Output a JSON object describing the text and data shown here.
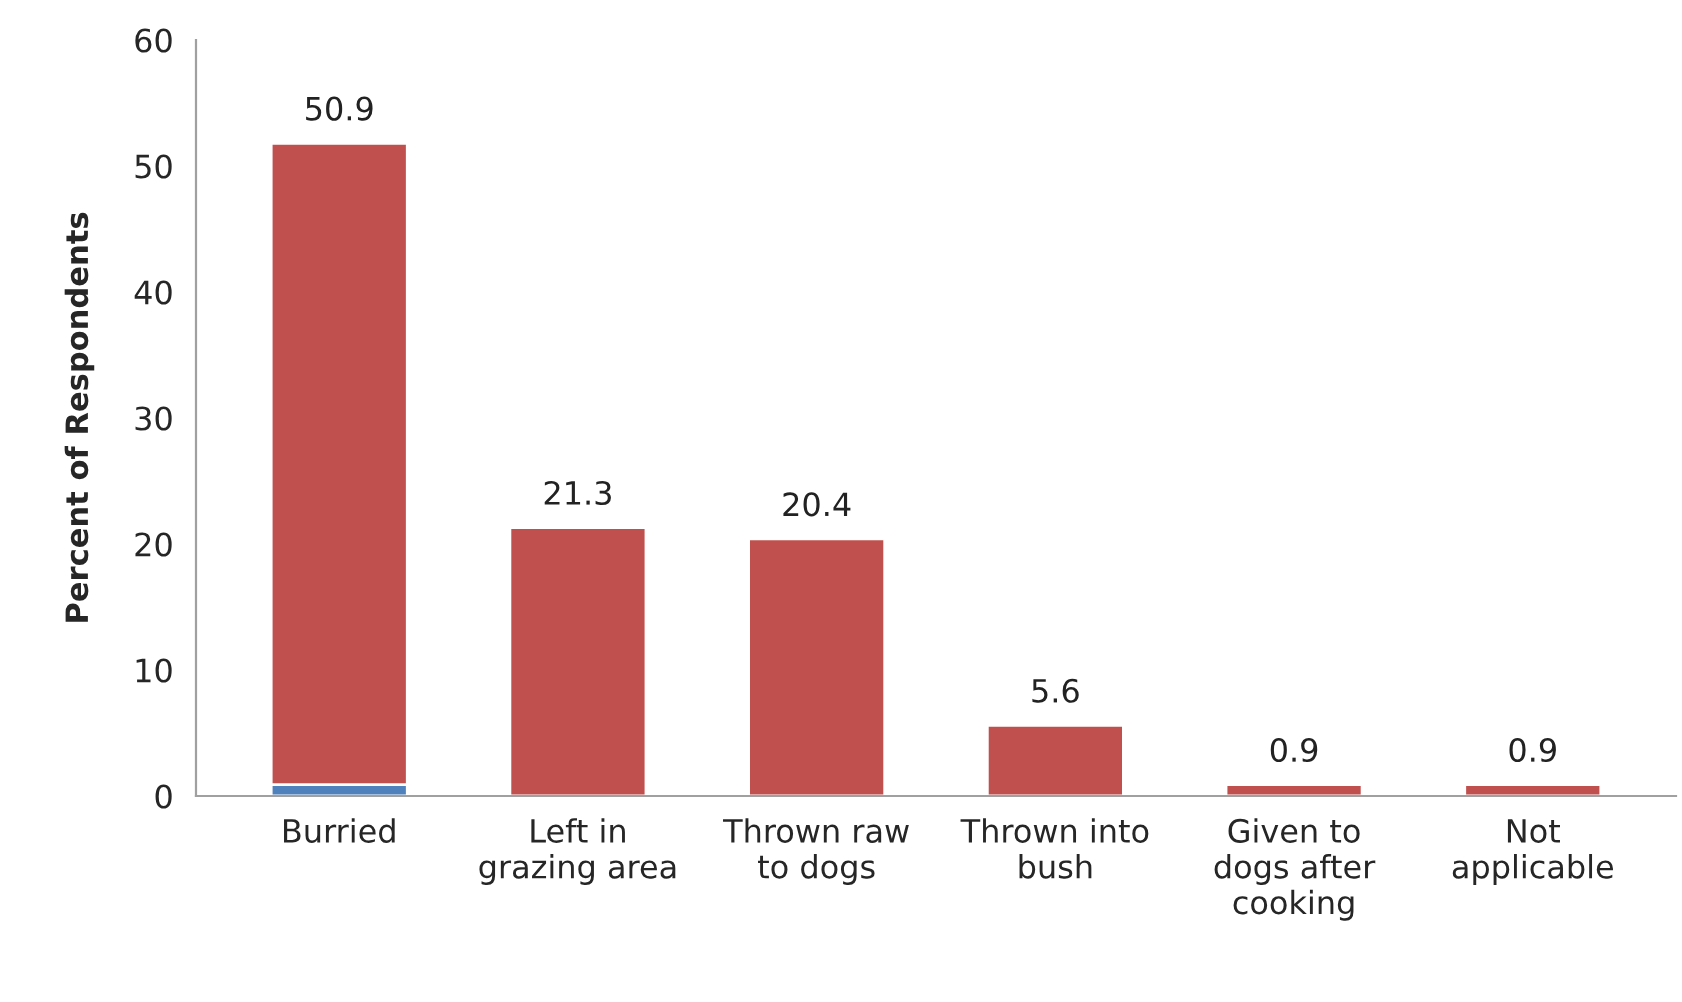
{
  "chart_data": {
    "type": "bar",
    "stacked": true,
    "ylabel": "Percent of Respondents",
    "categories": [
      "Burried",
      "Left in\ngrazing area",
      "Thrown raw\nto dogs",
      "Thrown into\nbush",
      "Given to\ndogs after\ncooking",
      "Not\napplicable"
    ],
    "series": [
      {
        "color": "#4f81bd",
        "values": [
          0.9,
          null,
          null,
          null,
          null,
          null
        ]
      },
      {
        "color": "#c0504d",
        "values": [
          50.9,
          21.3,
          20.4,
          5.6,
          0.9,
          0.9
        ],
        "value_labels": [
          "50.9",
          "21.3",
          "20.4",
          "5.6",
          "0.9",
          "0.9"
        ]
      }
    ],
    "ylim": [
      0,
      60
    ],
    "yticks": [
      0,
      10,
      20,
      30,
      40,
      50,
      60
    ],
    "grid": false,
    "legend": false
  }
}
